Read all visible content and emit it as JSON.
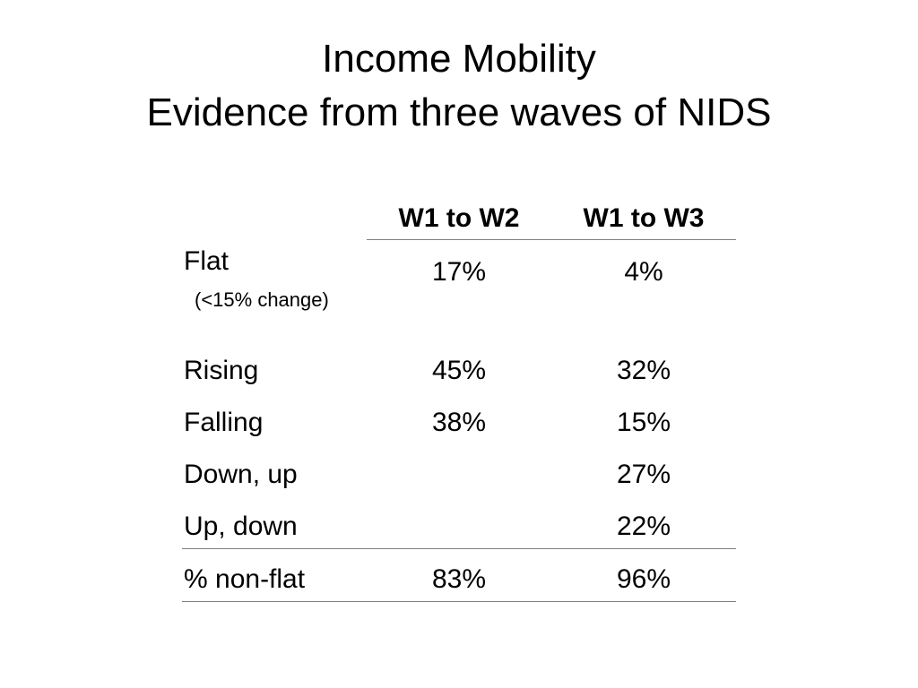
{
  "title": {
    "line1": "Income Mobility",
    "line2": "Evidence from three waves of NIDS"
  },
  "table": {
    "columns": [
      "W1 to W2",
      "W1 to W3"
    ],
    "rows": [
      {
        "label": "Flat",
        "sublabel": "(<15% change)",
        "w1_w2": "17%",
        "w1_w3": "4%"
      },
      {
        "label": "Rising",
        "w1_w2": "45%",
        "w1_w3": "32%"
      },
      {
        "label": "Falling",
        "w1_w2": "38%",
        "w1_w3": "15%"
      },
      {
        "label": "Down, up",
        "w1_w2": "",
        "w1_w3": "27%"
      },
      {
        "label": "Up, down",
        "w1_w2": "",
        "w1_w3": "22%"
      },
      {
        "label": "% non-flat",
        "w1_w2": "83%",
        "w1_w3": "96%"
      }
    ]
  }
}
